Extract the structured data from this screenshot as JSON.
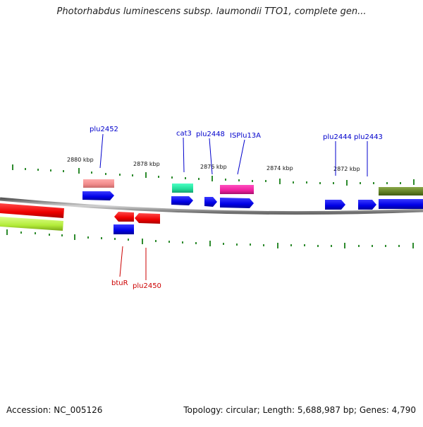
{
  "title": "Photorhabdus luminescens subsp. laumondii TTO1, complete gen...",
  "footer": {
    "accession": "Accession: NC_005126",
    "summary": "Topology: circular; Length: 5,688,987 bp; Genes: 4,790"
  },
  "scale_labels": [
    "2880 kbp",
    "2878 kbp",
    "2876 kbp",
    "2874 kbp",
    "2872 kbp"
  ],
  "gene_labels_top": [
    "plu2452",
    "cat3",
    "plu2448",
    "ISPlu13A",
    "plu2444",
    "plu2443"
  ],
  "gene_labels_bottom": [
    "btuR",
    "plu2450"
  ],
  "colors": {
    "backbone": "#8a8a8a",
    "tick": "#2e8b2e",
    "label_top": "#0000cc",
    "label_bottom": "#cc0000",
    "cds_forward": "#0000ee",
    "cds_reverse": "#ee0000"
  }
}
